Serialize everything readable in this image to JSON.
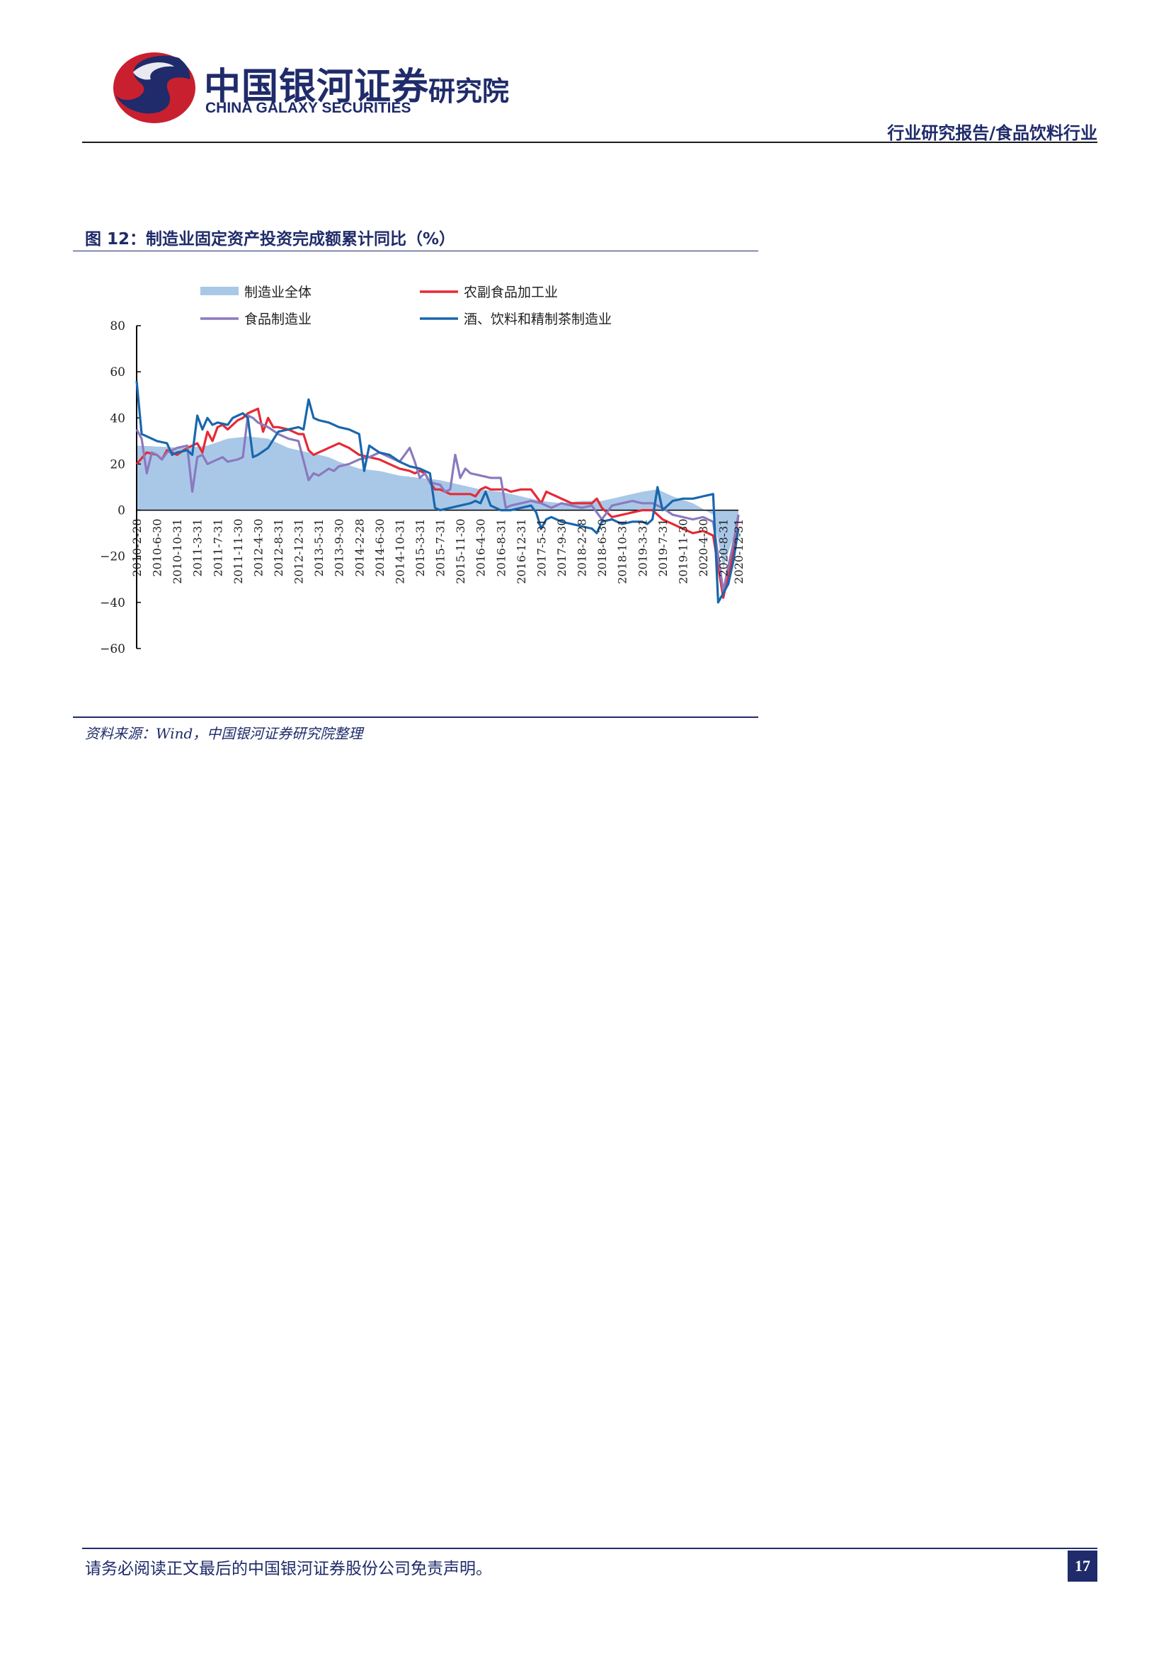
{
  "header": {
    "brand_cn": "中国银河证券",
    "brand_en": "CHINA GALAXY SECURITIES",
    "institute": "研究院",
    "report_type": "行业研究报告/食品饮料行业",
    "logo_colors": [
      "#c8202f",
      "#1f2b6a"
    ]
  },
  "figure": {
    "caption": "图 12：制造业固定资产投资完成额累计同比（%）",
    "source": "资料来源：Wind，中国银河证券研究院整理"
  },
  "chart_data": {
    "type": "line",
    "title": "",
    "ylim": [
      -60,
      80
    ],
    "yticks": [
      80,
      60,
      40,
      20,
      0,
      -20,
      -40,
      -60
    ],
    "xtick_labels": [
      "2010-2-28",
      "2010-6-30",
      "2010-10-31",
      "2011-3-31",
      "2011-7-31",
      "2011-11-30",
      "2012-4-30",
      "2012-8-31",
      "2012-12-31",
      "2013-5-31",
      "2013-9-30",
      "2014-2-28",
      "2014-6-30",
      "2014-10-31",
      "2015-3-31",
      "2015-7-31",
      "2015-11-30",
      "2016-4-30",
      "2016-8-31",
      "2016-12-31",
      "2017-5-31",
      "2017-9-30",
      "2018-2-28",
      "2018-6-30",
      "2018-10-31",
      "2019-3-31",
      "2019-7-31",
      "2019-11-30",
      "2020-4-30",
      "2020-8-31",
      "2020-12-31"
    ],
    "n_points": 120,
    "legend_position": "top",
    "series": [
      {
        "name": "制造业全体",
        "kind": "area",
        "color": "#a9c8e8",
        "keys": [
          [
            0,
            28
          ],
          [
            10,
            27
          ],
          [
            14,
            28
          ],
          [
            18,
            31
          ],
          [
            22,
            32
          ],
          [
            26,
            31
          ],
          [
            30,
            27
          ],
          [
            34,
            25
          ],
          [
            38,
            23
          ],
          [
            40,
            21
          ],
          [
            44,
            18
          ],
          [
            48,
            17
          ],
          [
            52,
            15
          ],
          [
            56,
            14
          ],
          [
            60,
            13
          ],
          [
            64,
            11
          ],
          [
            68,
            9
          ],
          [
            72,
            8
          ],
          [
            76,
            6
          ],
          [
            80,
            4
          ],
          [
            84,
            3
          ],
          [
            88,
            4
          ],
          [
            92,
            4
          ],
          [
            96,
            6
          ],
          [
            100,
            8
          ],
          [
            103,
            9
          ],
          [
            106,
            6
          ],
          [
            110,
            3
          ],
          [
            114,
            -2
          ],
          [
            116,
            -25
          ],
          [
            118,
            -12
          ],
          [
            119,
            -2
          ]
        ]
      },
      {
        "name": "农副食品加工业",
        "kind": "line",
        "color": "#e52a35",
        "keys": [
          [
            0,
            20
          ],
          [
            2,
            25
          ],
          [
            4,
            24
          ],
          [
            5,
            22
          ],
          [
            6,
            26
          ],
          [
            8,
            24
          ],
          [
            10,
            27
          ],
          [
            11,
            28
          ],
          [
            12,
            29
          ],
          [
            13,
            25
          ],
          [
            14,
            34
          ],
          [
            15,
            30
          ],
          [
            16,
            36
          ],
          [
            17,
            37
          ],
          [
            18,
            35
          ],
          [
            20,
            39
          ],
          [
            21,
            40
          ],
          [
            22,
            42
          ],
          [
            23,
            43
          ],
          [
            24,
            44
          ],
          [
            25,
            34
          ],
          [
            26,
            40
          ],
          [
            27,
            36
          ],
          [
            28,
            36
          ],
          [
            30,
            35
          ],
          [
            31,
            34
          ],
          [
            32,
            33
          ],
          [
            33,
            33
          ],
          [
            34,
            26
          ],
          [
            35,
            24
          ],
          [
            36,
            25
          ],
          [
            38,
            27
          ],
          [
            39,
            28
          ],
          [
            40,
            29
          ],
          [
            41,
            28
          ],
          [
            42,
            27
          ],
          [
            44,
            24
          ],
          [
            46,
            23
          ],
          [
            48,
            22
          ],
          [
            50,
            20
          ],
          [
            52,
            18
          ],
          [
            54,
            17
          ],
          [
            55,
            16
          ],
          [
            56,
            17
          ],
          [
            57,
            16
          ],
          [
            58,
            12
          ],
          [
            59,
            9
          ],
          [
            60,
            9
          ],
          [
            62,
            7
          ],
          [
            64,
            7
          ],
          [
            66,
            7
          ],
          [
            67,
            6
          ],
          [
            68,
            9
          ],
          [
            69,
            10
          ],
          [
            70,
            9
          ],
          [
            72,
            9
          ],
          [
            73,
            9
          ],
          [
            74,
            8
          ],
          [
            76,
            9
          ],
          [
            77,
            9
          ],
          [
            78,
            9
          ],
          [
            80,
            3
          ],
          [
            81,
            8
          ],
          [
            82,
            7
          ],
          [
            84,
            5
          ],
          [
            86,
            3
          ],
          [
            88,
            3
          ],
          [
            90,
            3
          ],
          [
            91,
            5
          ],
          [
            92,
            1
          ],
          [
            94,
            -3
          ],
          [
            96,
            -2
          ],
          [
            98,
            -1
          ],
          [
            100,
            0
          ],
          [
            102,
            0
          ],
          [
            104,
            -4
          ],
          [
            106,
            -6
          ],
          [
            108,
            -8
          ],
          [
            110,
            -10
          ],
          [
            112,
            -9
          ],
          [
            114,
            -11
          ],
          [
            116,
            -38
          ],
          [
            118,
            -18
          ],
          [
            119,
            -2
          ]
        ]
      },
      {
        "name": "食品制造业",
        "kind": "line",
        "color": "#8b79be",
        "keys": [
          [
            0,
            35
          ],
          [
            1,
            31
          ],
          [
            2,
            16
          ],
          [
            3,
            25
          ],
          [
            4,
            24
          ],
          [
            5,
            22
          ],
          [
            6,
            25
          ],
          [
            8,
            27
          ],
          [
            10,
            28
          ],
          [
            11,
            8
          ],
          [
            12,
            23
          ],
          [
            13,
            24
          ],
          [
            14,
            20
          ],
          [
            16,
            22
          ],
          [
            17,
            23
          ],
          [
            18,
            21
          ],
          [
            20,
            22
          ],
          [
            21,
            23
          ],
          [
            22,
            41
          ],
          [
            23,
            40
          ],
          [
            24,
            38
          ],
          [
            26,
            36
          ],
          [
            28,
            33
          ],
          [
            30,
            31
          ],
          [
            32,
            30
          ],
          [
            34,
            13
          ],
          [
            35,
            16
          ],
          [
            36,
            15
          ],
          [
            38,
            18
          ],
          [
            39,
            17
          ],
          [
            40,
            19
          ],
          [
            42,
            20
          ],
          [
            44,
            22
          ],
          [
            46,
            23
          ],
          [
            48,
            25
          ],
          [
            50,
            23
          ],
          [
            52,
            21
          ],
          [
            54,
            27
          ],
          [
            55,
            21
          ],
          [
            56,
            14
          ],
          [
            57,
            16
          ],
          [
            58,
            12
          ],
          [
            60,
            11
          ],
          [
            61,
            8
          ],
          [
            62,
            9
          ],
          [
            63,
            24
          ],
          [
            64,
            14
          ],
          [
            65,
            18
          ],
          [
            66,
            16
          ],
          [
            68,
            15
          ],
          [
            70,
            14
          ],
          [
            72,
            14
          ],
          [
            73,
            1
          ],
          [
            74,
            2
          ],
          [
            76,
            3
          ],
          [
            78,
            4
          ],
          [
            80,
            3
          ],
          [
            82,
            1
          ],
          [
            84,
            3
          ],
          [
            86,
            2
          ],
          [
            88,
            1
          ],
          [
            90,
            2
          ],
          [
            92,
            -4
          ],
          [
            94,
            2
          ],
          [
            96,
            3
          ],
          [
            98,
            4
          ],
          [
            100,
            3
          ],
          [
            102,
            3
          ],
          [
            104,
            1
          ],
          [
            106,
            -2
          ],
          [
            108,
            -3
          ],
          [
            110,
            -4
          ],
          [
            112,
            -3
          ],
          [
            114,
            -5
          ],
          [
            116,
            -35
          ],
          [
            118,
            -14
          ],
          [
            119,
            -2
          ]
        ]
      },
      {
        "name": "酒、饮料和精制茶制造业",
        "kind": "line",
        "color": "#1867ad",
        "keys": [
          [
            0,
            56
          ],
          [
            1,
            33
          ],
          [
            2,
            32
          ],
          [
            3,
            31
          ],
          [
            4,
            30
          ],
          [
            6,
            29
          ],
          [
            7,
            24
          ],
          [
            8,
            25
          ],
          [
            10,
            26
          ],
          [
            11,
            24
          ],
          [
            12,
            41
          ],
          [
            13,
            35
          ],
          [
            14,
            40
          ],
          [
            15,
            37
          ],
          [
            16,
            38
          ],
          [
            18,
            37
          ],
          [
            19,
            40
          ],
          [
            20,
            41
          ],
          [
            21,
            42
          ],
          [
            22,
            40
          ],
          [
            23,
            23
          ],
          [
            24,
            24
          ],
          [
            26,
            27
          ],
          [
            28,
            34
          ],
          [
            30,
            35
          ],
          [
            32,
            36
          ],
          [
            33,
            35
          ],
          [
            34,
            48
          ],
          [
            35,
            40
          ],
          [
            36,
            39
          ],
          [
            38,
            38
          ],
          [
            40,
            36
          ],
          [
            42,
            35
          ],
          [
            44,
            33
          ],
          [
            45,
            17
          ],
          [
            46,
            28
          ],
          [
            48,
            25
          ],
          [
            50,
            24
          ],
          [
            52,
            21
          ],
          [
            54,
            19
          ],
          [
            56,
            18
          ],
          [
            57,
            17
          ],
          [
            58,
            16
          ],
          [
            59,
            1
          ],
          [
            60,
            0
          ],
          [
            62,
            1
          ],
          [
            64,
            2
          ],
          [
            66,
            3
          ],
          [
            67,
            4
          ],
          [
            68,
            3
          ],
          [
            69,
            8
          ],
          [
            70,
            2
          ],
          [
            72,
            0
          ],
          [
            74,
            0
          ],
          [
            76,
            1
          ],
          [
            78,
            2
          ],
          [
            79,
            -1
          ],
          [
            80,
            -8
          ],
          [
            81,
            -4
          ],
          [
            82,
            -3
          ],
          [
            84,
            -5
          ],
          [
            86,
            -6
          ],
          [
            88,
            -7
          ],
          [
            90,
            -8
          ],
          [
            91,
            -10
          ],
          [
            92,
            -5
          ],
          [
            94,
            -4
          ],
          [
            96,
            -6
          ],
          [
            98,
            -5
          ],
          [
            100,
            -5
          ],
          [
            101,
            -6
          ],
          [
            102,
            -4
          ],
          [
            103,
            10
          ],
          [
            104,
            0
          ],
          [
            106,
            4
          ],
          [
            108,
            5
          ],
          [
            110,
            5
          ],
          [
            112,
            6
          ],
          [
            114,
            7
          ],
          [
            115,
            -40
          ],
          [
            117,
            -32
          ],
          [
            118,
            -22
          ],
          [
            119,
            -8
          ]
        ]
      }
    ]
  },
  "footer": {
    "disclaimer": "请务必阅读正文最后的中国银河证券股份公司免责声明。",
    "page_number": "17"
  }
}
